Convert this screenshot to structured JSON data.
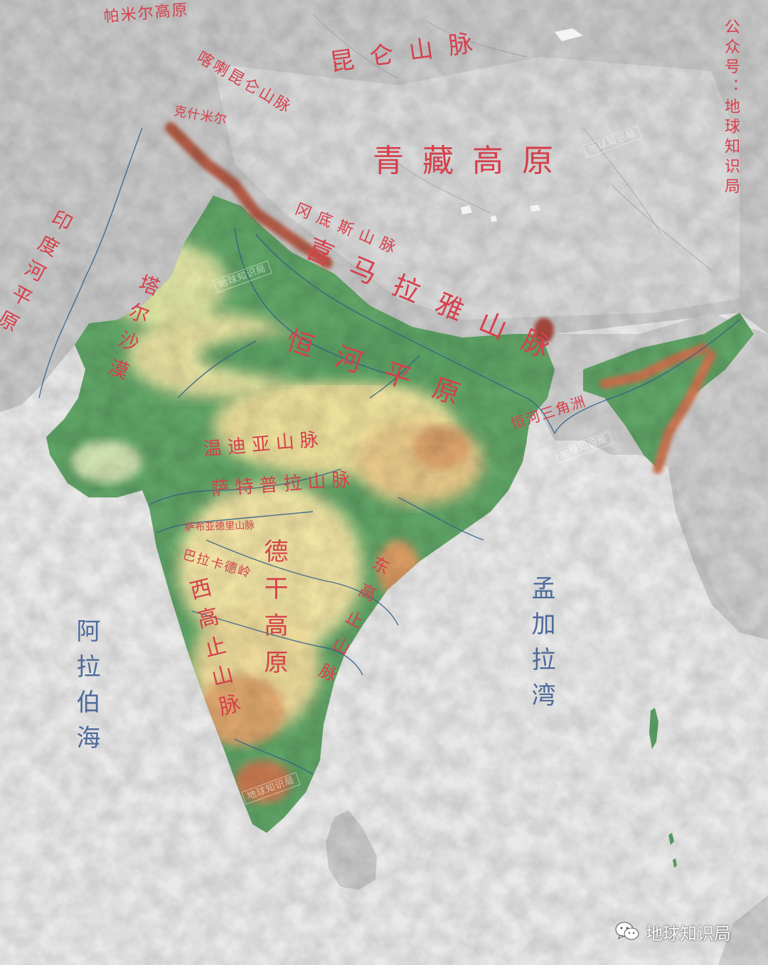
{
  "colors": {
    "label_red": "#d6404c",
    "sea_label_blue": "#4d6a9a",
    "river_blue": "#2f5f8a",
    "ocean": "#e9e9e9",
    "relief_gray": "#c8c8c8",
    "lowland_green": "#5aa064",
    "plateau_yellow": "#eadc97",
    "highland_orange": "#d08a52",
    "peak_red": "#a8473c"
  },
  "labels": {
    "pamir": "帕米尔高原",
    "kunlun": "昆仑山脉",
    "karakoram": "喀喇昆仑山脉",
    "kashmir": "克什米尔",
    "tibet": "青藏高原",
    "gangdise": "冈底斯山脉",
    "himalaya": "喜马拉雅山脉",
    "indus_plain": "印度河平原",
    "thar": "塔尔沙漠",
    "ganges_plain": "恒河平原",
    "ganges_delta": "恒河三角洲",
    "vindhya": "温迪亚山脉",
    "satpura": "萨特普拉山脉",
    "sahyadri": "萨布亚德里山脉",
    "balaghat": "巴拉卡德岭",
    "deccan": "德干高原",
    "western_ghats": "西高止山脉",
    "eastern_ghats": "东高止山脉",
    "arabian_sea": "阿拉伯海",
    "bay_of_bengal": "孟加拉湾",
    "credit": "公众号：地球知识局"
  },
  "watermark": "地球知识局",
  "brand": {
    "icon": "wechat-icon",
    "text": "地球知识局"
  }
}
